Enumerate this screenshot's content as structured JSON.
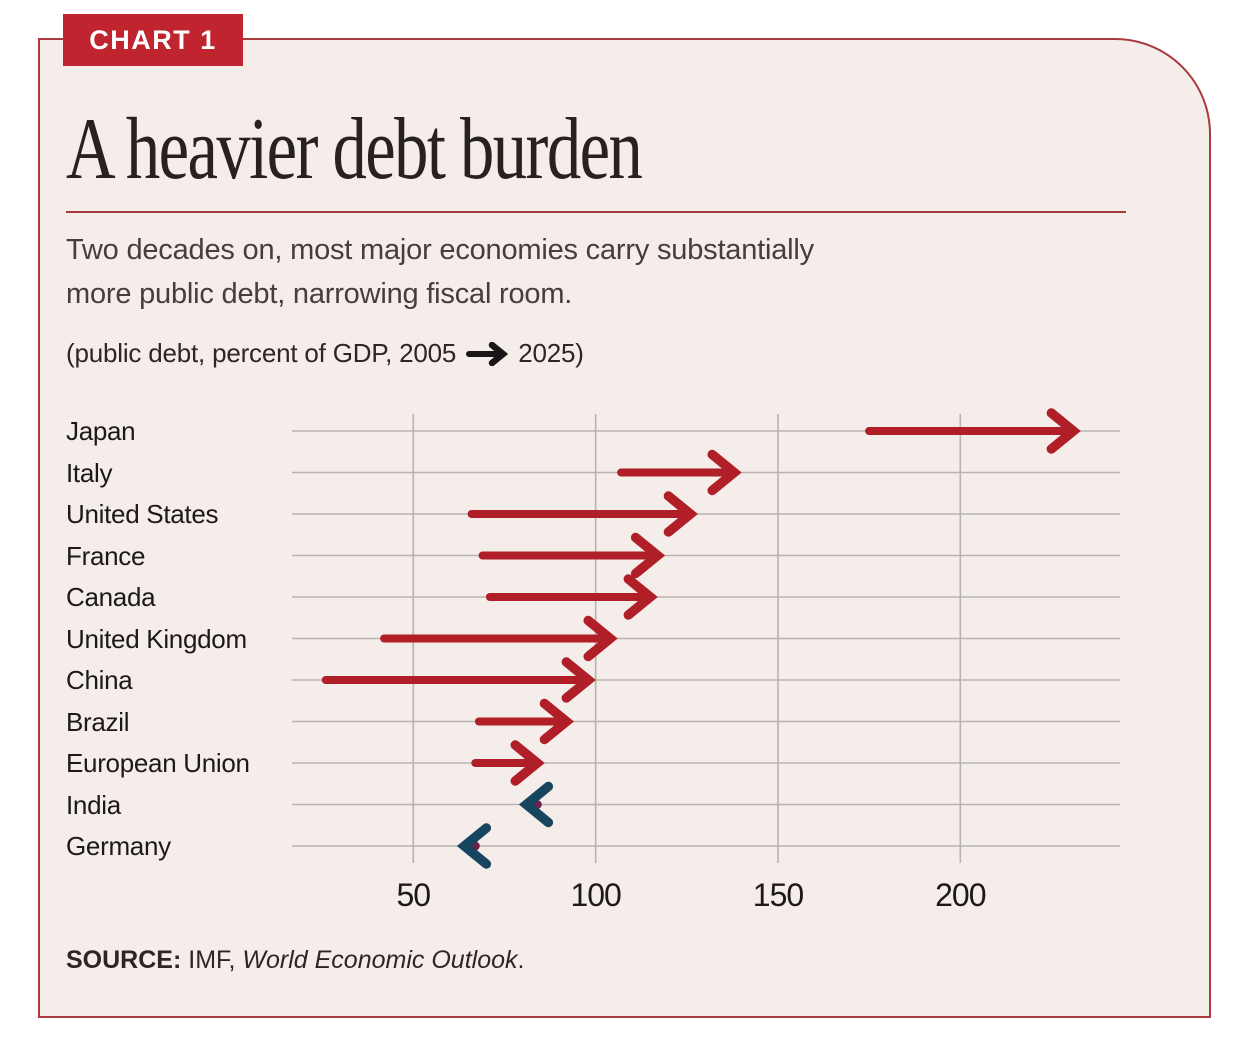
{
  "badge": {
    "label": "CHART 1"
  },
  "header": {
    "title": "A heavier debt burden",
    "subtitle_line1": "Two decades on, most major economies carry substantially",
    "subtitle_line2": "more public debt, narrowing fiscal room.",
    "note_prefix": "(public debt, percent of GDP, 2005",
    "note_suffix": "2025)",
    "note_arrow_icon": "right-arrow-icon"
  },
  "source": {
    "label": "SOURCE:",
    "publisher": " IMF, ",
    "publication": "World Economic Outlook",
    "terminator": "."
  },
  "colors": {
    "page_background": "#ffffff",
    "panel_background": "#f4ede9",
    "border_red": "#a93a40",
    "badge_red": "#c0242e",
    "increase_arrow_red": "#b01f27",
    "decrease_arrow_navy": "#17455f",
    "start_dot_maroon": "#6e2247",
    "gridline_gray": "#b7b3b0",
    "text_dark": "#1d191a"
  },
  "chart_data": {
    "type": "arrow",
    "title": "A heavier debt burden",
    "unit_note": "public debt, percent of GDP, 2005 to 2025",
    "xlabel": "percent of GDP",
    "x_ticks": [
      50,
      100,
      150,
      200
    ],
    "x_range": [
      17,
      243
    ],
    "grid": true,
    "legend": "none",
    "categories": [
      "Japan",
      "Italy",
      "United States",
      "France",
      "Canada",
      "United Kingdom",
      "China",
      "Brazil",
      "European Union",
      "India",
      "Germany"
    ],
    "series": [
      {
        "country": "Japan",
        "from_2005": 175,
        "to_2025": 231,
        "direction": "increase"
      },
      {
        "country": "Italy",
        "from_2005": 107,
        "to_2025": 138,
        "direction": "increase"
      },
      {
        "country": "United States",
        "from_2005": 66,
        "to_2025": 126,
        "direction": "increase"
      },
      {
        "country": "France",
        "from_2005": 69,
        "to_2025": 117,
        "direction": "increase"
      },
      {
        "country": "Canada",
        "from_2005": 71,
        "to_2025": 115,
        "direction": "increase"
      },
      {
        "country": "United Kingdom",
        "from_2005": 42,
        "to_2025": 104,
        "direction": "increase"
      },
      {
        "country": "China",
        "from_2005": 26,
        "to_2025": 98,
        "direction": "increase"
      },
      {
        "country": "Brazil",
        "from_2005": 68,
        "to_2025": 92,
        "direction": "increase"
      },
      {
        "country": "European Union",
        "from_2005": 67,
        "to_2025": 84,
        "direction": "increase"
      },
      {
        "country": "India",
        "from_2005": 84,
        "to_2025": 81,
        "direction": "decrease"
      },
      {
        "country": "Germany",
        "from_2005": 67,
        "to_2025": 64,
        "direction": "decrease"
      }
    ]
  }
}
